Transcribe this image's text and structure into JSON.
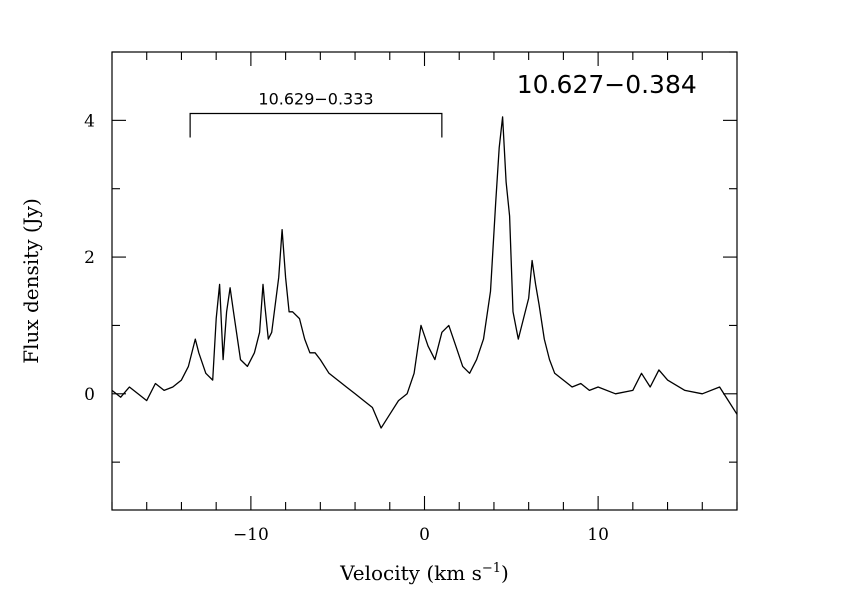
{
  "chart_data": {
    "type": "line",
    "title": "",
    "xlabel": "Velocity (km s",
    "xlabel_sup": "−1",
    "xlabel_close": ")",
    "ylabel": "Flux density (Jy)",
    "xlim": [
      -18,
      18
    ],
    "ylim": [
      -1.7,
      5.0
    ],
    "x_ticks": [
      -10,
      0,
      10
    ],
    "x_tick_labels": [
      "−10",
      "0",
      "10"
    ],
    "x_minor_step": 2,
    "y_ticks": [
      0,
      2,
      4
    ],
    "y_tick_labels": [
      "0",
      "2",
      "4"
    ],
    "y_minor_step": 1,
    "grid": false,
    "annotations": {
      "source_label": "10.627−0.384",
      "bracket_label": "10.629−0.333",
      "bracket_range": [
        -13.5,
        1.0
      ],
      "bracket_y": 4.1,
      "bracket_tick_bottom": 3.75
    },
    "series": [
      {
        "x": [
          -18,
          -17.5,
          -17,
          -16.5,
          -16,
          -15.5,
          -15,
          -14.5,
          -14,
          -13.6,
          -13.2,
          -13,
          -12.6,
          -12.2,
          -12,
          -11.8,
          -11.6,
          -11.4,
          -11.2,
          -11,
          -10.6,
          -10.2,
          -9.8,
          -9.5,
          -9.3,
          -9.2,
          -9,
          -8.8,
          -8.6,
          -8.4,
          -8.2,
          -8,
          -7.8,
          -7.6,
          -7.2,
          -6.9,
          -6.6,
          -6.3,
          -6,
          -5.5,
          -5,
          -4.5,
          -4,
          -3.5,
          -3,
          -2.5,
          -2,
          -1.5,
          -1,
          -0.6,
          -0.2,
          0.2,
          0.6,
          1,
          1.4,
          1.8,
          2.2,
          2.6,
          3,
          3.4,
          3.8,
          4.1,
          4.3,
          4.5,
          4.7,
          4.9,
          5.1,
          5.4,
          5.7,
          6,
          6.2,
          6.4,
          6.6,
          6.9,
          7.2,
          7.5,
          8,
          8.5,
          9,
          9.5,
          10,
          11,
          12,
          12.5,
          13,
          13.5,
          14,
          15,
          16,
          17,
          17.5,
          18
        ],
        "values": [
          0.05,
          -0.05,
          0.1,
          0.0,
          -0.1,
          0.15,
          0.05,
          0.1,
          0.2,
          0.4,
          0.8,
          0.6,
          0.3,
          0.2,
          1.1,
          1.6,
          0.5,
          1.2,
          1.55,
          1.2,
          0.5,
          0.4,
          0.6,
          0.9,
          1.6,
          1.3,
          0.8,
          0.9,
          1.3,
          1.7,
          2.4,
          1.7,
          1.2,
          1.2,
          1.1,
          0.8,
          0.6,
          0.6,
          0.5,
          0.3,
          0.2,
          0.1,
          0.0,
          -0.1,
          -0.2,
          -0.5,
          -0.3,
          -0.1,
          0.0,
          0.3,
          1.0,
          0.7,
          0.5,
          0.9,
          1.0,
          0.7,
          0.4,
          0.3,
          0.5,
          0.8,
          1.5,
          2.8,
          3.6,
          4.05,
          3.1,
          2.6,
          1.2,
          0.8,
          1.1,
          1.4,
          1.95,
          1.6,
          1.3,
          0.8,
          0.5,
          0.3,
          0.2,
          0.1,
          0.15,
          0.05,
          0.1,
          0.0,
          0.05,
          0.3,
          0.1,
          0.35,
          0.2,
          0.05,
          0.0,
          0.1,
          -0.1,
          -0.3
        ]
      }
    ]
  }
}
